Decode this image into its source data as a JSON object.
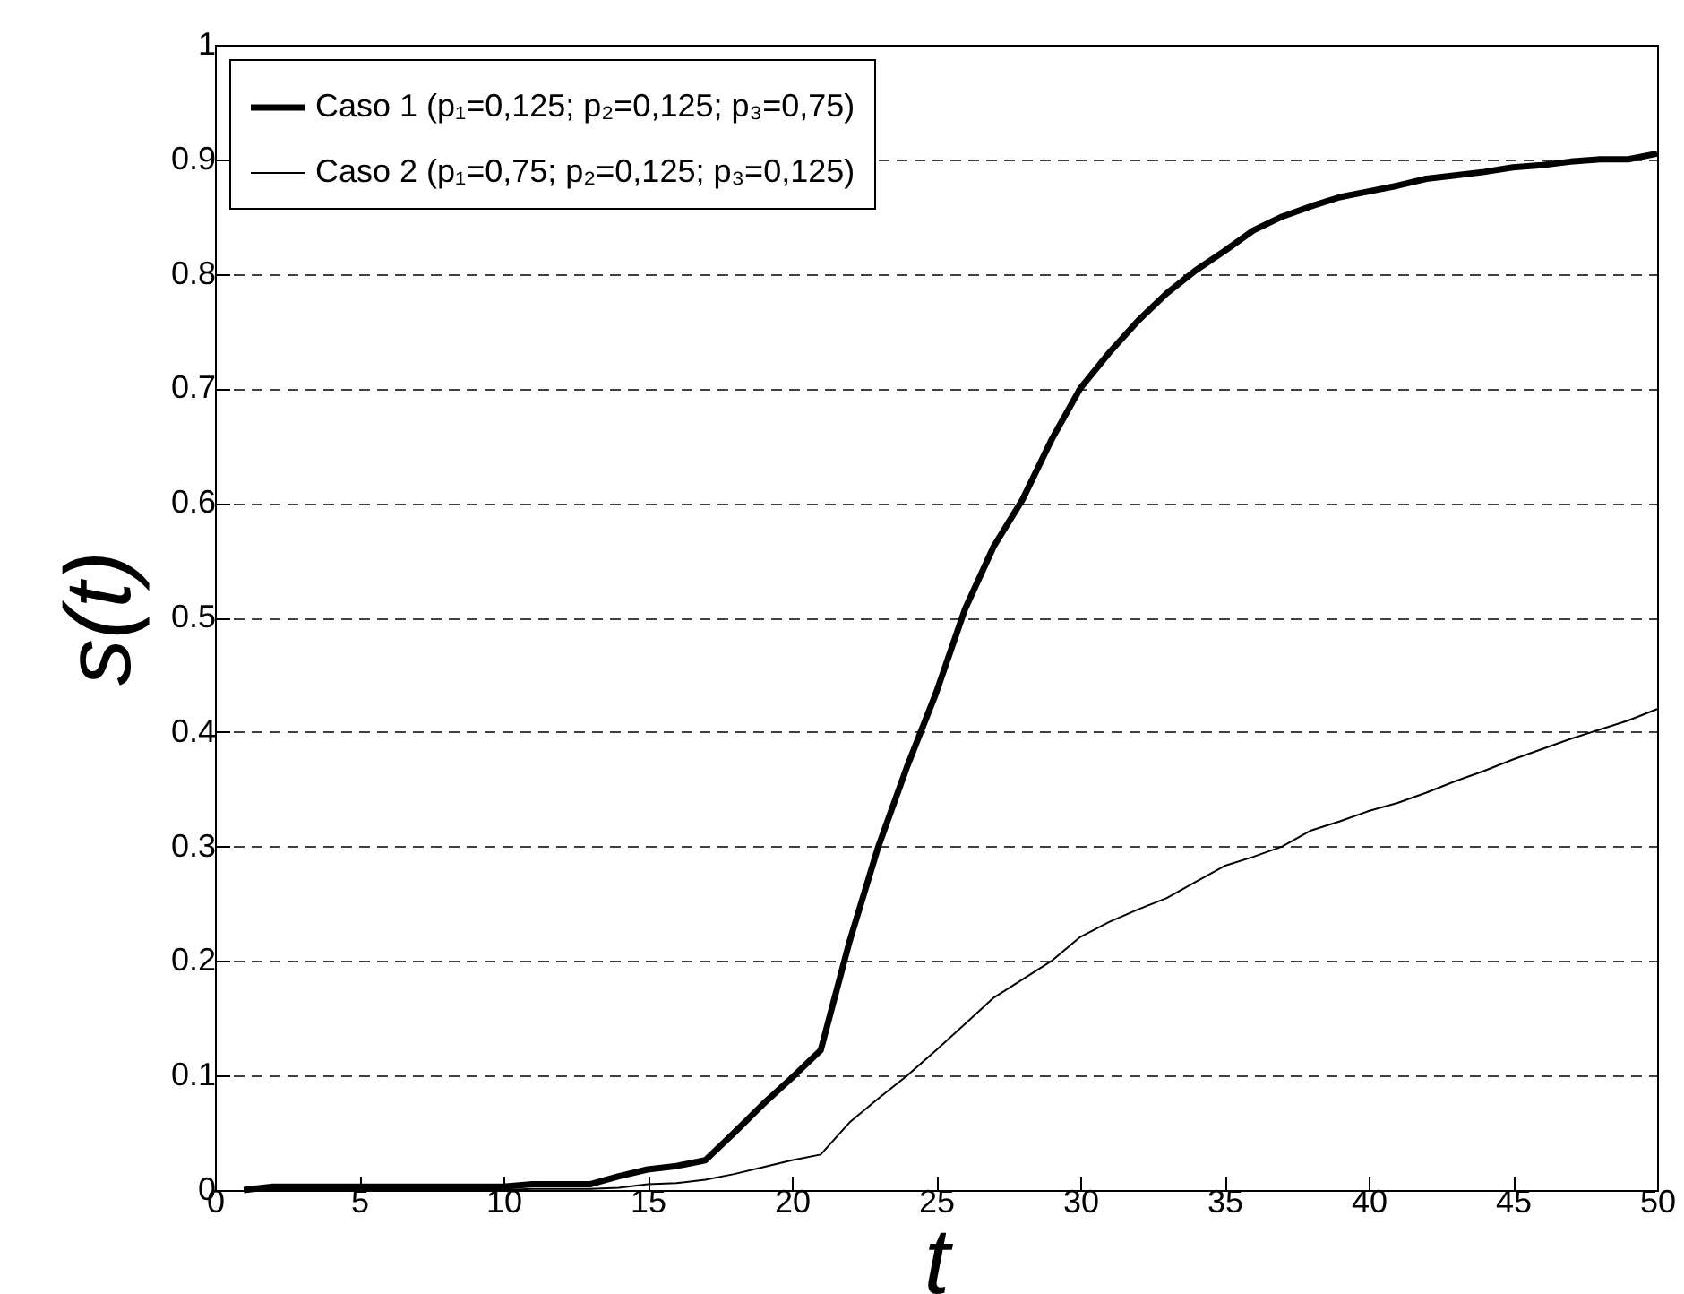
{
  "chart_data": {
    "type": "line",
    "xlabel": "t",
    "ylabel": "s(t)",
    "x": [
      1,
      2,
      3,
      4,
      5,
      6,
      7,
      8,
      9,
      10,
      11,
      12,
      13,
      14,
      15,
      16,
      17,
      18,
      19,
      20,
      21,
      22,
      23,
      24,
      25,
      26,
      27,
      28,
      29,
      30,
      31,
      32,
      33,
      34,
      35,
      36,
      37,
      38,
      39,
      40,
      41,
      42,
      43,
      44,
      45,
      46,
      47,
      48,
      49,
      50
    ],
    "series": [
      {
        "name": "Caso 1 (p₁=0,125; p₂=0,125; p₃=0,75)",
        "color": "#000000",
        "values": [
          0,
          0.003,
          0.003,
          0.003,
          0.003,
          0.003,
          0.003,
          0.003,
          0.003,
          0.003,
          0.005,
          0.005,
          0.005,
          0.012,
          0.018,
          0.021,
          0.026,
          0.05,
          0.075,
          0.098,
          0.122,
          0.217,
          0.3,
          0.37,
          0.434,
          0.507,
          0.562,
          0.603,
          0.655,
          0.7,
          0.731,
          0.759,
          0.783,
          0.803,
          0.82,
          0.838,
          0.85,
          0.859,
          0.867,
          0.872,
          0.877,
          0.883,
          0.886,
          0.889,
          0.893,
          0.895,
          0.898,
          0.9,
          0.9,
          0.905
        ]
      },
      {
        "name": "Caso 2 (p₁=0,75; p₂=0,125; p₃=0,125)",
        "color": "#000000",
        "values": [
          0,
          0,
          0,
          0,
          0,
          0,
          0,
          0,
          0,
          0,
          0.001,
          0.001,
          0.001,
          0.002,
          0.005,
          0.006,
          0.009,
          0.014,
          0.02,
          0.026,
          0.031,
          0.059,
          0.08,
          0.1,
          0.122,
          0.145,
          0.168,
          0.184,
          0.2,
          0.221,
          0.234,
          0.245,
          0.255,
          0.269,
          0.283,
          0.291,
          0.3,
          0.314,
          0.322,
          0.331,
          0.338,
          0.347,
          0.357,
          0.366,
          0.376,
          0.385,
          0.394,
          0.402,
          0.41,
          0.42
        ]
      }
    ],
    "xlim": [
      0,
      50
    ],
    "xticks": [
      0,
      5,
      10,
      15,
      20,
      25,
      30,
      35,
      40,
      45,
      50
    ],
    "ylim": [
      0,
      1
    ],
    "yticks": [
      0,
      0.1,
      0.2,
      0.3,
      0.4,
      0.5,
      0.6,
      0.7,
      0.8,
      0.9,
      1
    ],
    "grid": "y",
    "legend": "top left",
    "line_style": "solid",
    "marker": "none"
  }
}
